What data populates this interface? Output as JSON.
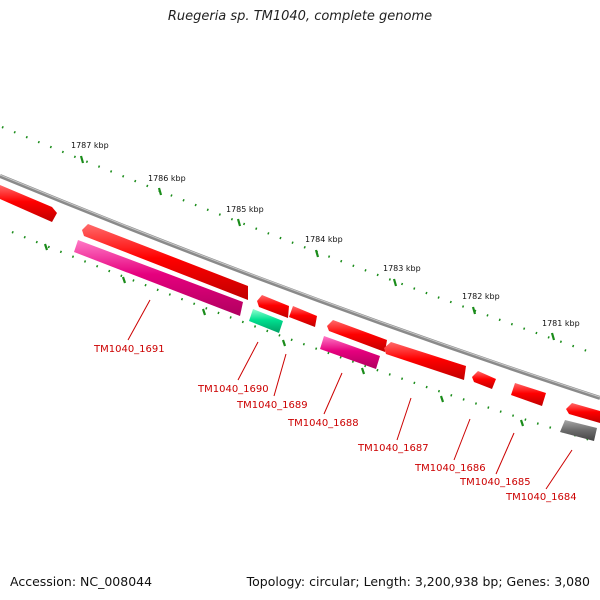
{
  "title": "Ruegeria sp. TM1040, complete genome",
  "footer": {
    "accession": "Accession: NC_008044",
    "topology": "Topology: circular; Length: 3,200,938 bp; Genes: 3,080"
  },
  "scale_ticks": [
    "1787 kbp",
    "1786 kbp",
    "1785 kbp",
    "1784 kbp",
    "1783 kbp",
    "1782 kbp",
    "1781 kbp"
  ],
  "genes": [
    {
      "label": "TM1040_1691",
      "color": "#e6007e"
    },
    {
      "label": "TM1040_1690",
      "color": "#00d68f"
    },
    {
      "label": "TM1040_1689",
      "color": "#ff0000"
    },
    {
      "label": "TM1040_1688",
      "color": "#e6007e"
    },
    {
      "label": "TM1040_1687",
      "color": "#ff0000"
    },
    {
      "label": "TM1040_1686",
      "color": "#ff0000"
    },
    {
      "label": "TM1040_1685",
      "color": "#ff0000"
    },
    {
      "label": "TM1040_1684",
      "color": "#666666"
    }
  ],
  "colors": {
    "backbone": "#808080",
    "forward_gene": "#ff0000",
    "tick": "#1a8c1a",
    "label": "#cc0000"
  }
}
